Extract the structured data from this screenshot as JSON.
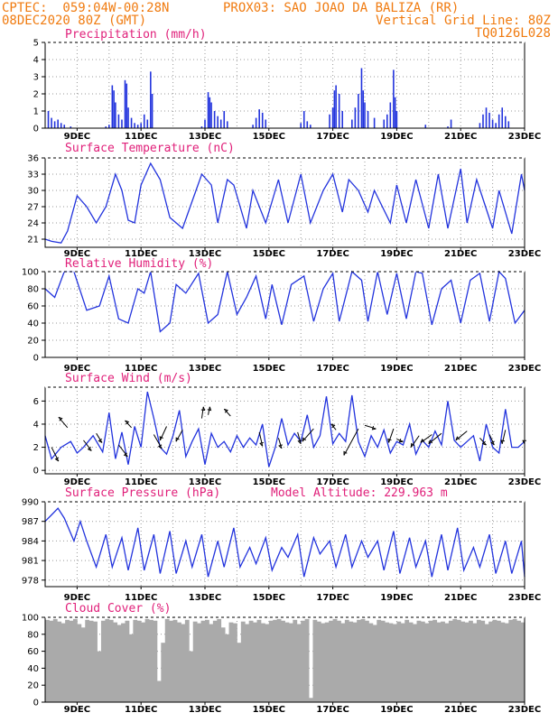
{
  "header": {
    "line1_left": "CPTEC:  059:04W-00:28N",
    "line1_right": "PROX03: SAO JOAO DA BALIZA (RR)",
    "line2_left": "08DEC2020 80Z (GMT)",
    "line2_right": "Vertical Grid Line: 80Z",
    "line3_right": "TQ0126L028"
  },
  "x_ticks": [
    "9DEC",
    "11DEC",
    "13DEC",
    "15DEC",
    "17DEC",
    "19DEC",
    "21DEC",
    "23DEC"
  ],
  "colors": {
    "header": "#f07b10",
    "title": "#e0207a",
    "series": "#2233dd",
    "cloud": "#aaaaaa"
  },
  "chart_data": [
    {
      "type": "bar",
      "title": "Precipitation (mm/h)",
      "ylim": [
        0,
        5
      ],
      "yticks": [
        "0",
        "1",
        "2",
        "3",
        "4",
        "5"
      ],
      "xlim": [
        8,
        23
      ],
      "bars": [
        [
          8.1,
          1.0
        ],
        [
          8.2,
          0.6
        ],
        [
          8.3,
          0.4
        ],
        [
          8.4,
          0.5
        ],
        [
          8.5,
          0.3
        ],
        [
          8.6,
          0.2
        ],
        [
          8.8,
          0.1
        ],
        [
          9.9,
          0.1
        ],
        [
          10.0,
          0.2
        ],
        [
          10.1,
          2.5
        ],
        [
          10.15,
          2.2
        ],
        [
          10.2,
          1.5
        ],
        [
          10.3,
          0.8
        ],
        [
          10.4,
          0.5
        ],
        [
          10.5,
          2.8
        ],
        [
          10.55,
          2.6
        ],
        [
          10.6,
          1.2
        ],
        [
          10.7,
          0.6
        ],
        [
          10.8,
          0.3
        ],
        [
          10.9,
          0.2
        ],
        [
          11.0,
          0.3
        ],
        [
          11.1,
          0.8
        ],
        [
          11.2,
          0.5
        ],
        [
          11.3,
          3.3
        ],
        [
          11.35,
          2.0
        ],
        [
          12.9,
          0.1
        ],
        [
          13.0,
          0.5
        ],
        [
          13.1,
          2.1
        ],
        [
          13.15,
          1.8
        ],
        [
          13.2,
          1.5
        ],
        [
          13.3,
          1.0
        ],
        [
          13.4,
          0.7
        ],
        [
          13.5,
          0.5
        ],
        [
          13.6,
          1.0
        ],
        [
          13.7,
          0.4
        ],
        [
          14.5,
          0.2
        ],
        [
          14.6,
          0.6
        ],
        [
          14.7,
          1.1
        ],
        [
          14.8,
          0.9
        ],
        [
          14.9,
          0.5
        ],
        [
          16.0,
          0.3
        ],
        [
          16.1,
          1.0
        ],
        [
          16.2,
          0.4
        ],
        [
          16.3,
          0.2
        ],
        [
          16.9,
          0.8
        ],
        [
          17.0,
          1.2
        ],
        [
          17.05,
          2.2
        ],
        [
          17.1,
          2.5
        ],
        [
          17.2,
          2.0
        ],
        [
          17.3,
          1.0
        ],
        [
          17.6,
          0.5
        ],
        [
          17.7,
          1.2
        ],
        [
          17.8,
          2.0
        ],
        [
          17.9,
          3.5
        ],
        [
          17.95,
          2.2
        ],
        [
          18.0,
          1.5
        ],
        [
          18.1,
          1.0
        ],
        [
          18.3,
          0.6
        ],
        [
          18.6,
          0.5
        ],
        [
          18.7,
          0.8
        ],
        [
          18.8,
          1.5
        ],
        [
          18.9,
          3.4
        ],
        [
          18.95,
          1.8
        ],
        [
          19.0,
          1.0
        ],
        [
          19.9,
          0.2
        ],
        [
          20.6,
          0.1
        ],
        [
          20.7,
          0.5
        ],
        [
          21.6,
          0.3
        ],
        [
          21.7,
          0.8
        ],
        [
          21.8,
          1.2
        ],
        [
          21.9,
          0.9
        ],
        [
          22.0,
          0.5
        ],
        [
          22.1,
          0.3
        ],
        [
          22.2,
          0.8
        ],
        [
          22.3,
          1.2
        ],
        [
          22.4,
          0.7
        ],
        [
          22.5,
          0.4
        ]
      ]
    },
    {
      "type": "line",
      "title": "Surface Temperature (nC)",
      "ylim": [
        19.5,
        36
      ],
      "ytick_values": [
        21,
        24,
        27,
        30,
        33,
        36
      ],
      "yticks": [
        "21",
        "24",
        "27",
        "30",
        "33",
        "36"
      ],
      "x": [
        8.0,
        8.2,
        8.5,
        8.7,
        9.0,
        9.3,
        9.6,
        9.9,
        10.2,
        10.4,
        10.6,
        10.8,
        11.0,
        11.3,
        11.6,
        11.9,
        12.3,
        12.6,
        12.9,
        13.2,
        13.4,
        13.7,
        13.9,
        14.3,
        14.5,
        14.9,
        15.3,
        15.6,
        16.0,
        16.3,
        16.7,
        17.0,
        17.3,
        17.5,
        17.8,
        18.1,
        18.3,
        18.8,
        19.0,
        19.3,
        19.6,
        20.0,
        20.3,
        20.6,
        21.0,
        21.2,
        21.5,
        22.0,
        22.2,
        22.6,
        22.9,
        23.0
      ],
      "y": [
        21,
        20.6,
        20.3,
        22.5,
        29,
        27,
        24,
        27,
        33,
        30,
        24.5,
        24,
        31,
        35,
        32,
        25,
        23,
        28,
        33,
        31,
        24,
        32,
        31,
        23,
        30,
        24,
        32,
        24,
        33,
        24,
        30,
        33,
        26,
        32,
        30,
        26,
        30,
        24,
        31,
        24,
        32,
        23,
        33,
        23,
        34,
        24,
        32,
        23,
        30,
        22,
        33,
        30
      ]
    },
    {
      "type": "line",
      "title": "Relative Humidity (%)",
      "ylim": [
        0,
        100
      ],
      "yticks": [
        "0",
        "20",
        "40",
        "60",
        "80",
        "100"
      ],
      "x": [
        8.0,
        8.3,
        8.6,
        8.9,
        9.3,
        9.7,
        10.0,
        10.3,
        10.6,
        10.9,
        11.1,
        11.3,
        11.6,
        11.9,
        12.1,
        12.4,
        12.8,
        13.1,
        13.4,
        13.7,
        14.0,
        14.3,
        14.6,
        14.9,
        15.1,
        15.4,
        15.7,
        16.1,
        16.4,
        16.7,
        17.0,
        17.2,
        17.6,
        17.9,
        18.1,
        18.4,
        18.7,
        19.0,
        19.3,
        19.6,
        19.8,
        20.1,
        20.4,
        20.7,
        21.0,
        21.3,
        21.6,
        21.9,
        22.2,
        22.4,
        22.7,
        23.0
      ],
      "y": [
        80,
        70,
        100,
        100,
        55,
        60,
        95,
        45,
        40,
        80,
        75,
        100,
        30,
        40,
        85,
        75,
        98,
        40,
        50,
        100,
        50,
        70,
        95,
        45,
        85,
        38,
        85,
        95,
        42,
        80,
        98,
        42,
        100,
        90,
        42,
        100,
        50,
        98,
        45,
        100,
        98,
        38,
        80,
        90,
        40,
        90,
        98,
        42,
        100,
        92,
        40,
        55
      ]
    },
    {
      "type": "line",
      "title": "Surface Wind (m/s)",
      "ylim": [
        -0.3,
        7.2
      ],
      "ytick_values": [
        0,
        2,
        4,
        6
      ],
      "yticks": [
        "0",
        "2",
        "4",
        "6"
      ],
      "x": [
        8.0,
        8.2,
        8.5,
        8.8,
        9.0,
        9.2,
        9.5,
        9.8,
        10.0,
        10.2,
        10.4,
        10.6,
        10.8,
        11.0,
        11.2,
        11.4,
        11.6,
        11.8,
        12.0,
        12.2,
        12.4,
        12.6,
        12.8,
        13.0,
        13.2,
        13.4,
        13.6,
        13.8,
        14.0,
        14.2,
        14.4,
        14.6,
        14.8,
        15.0,
        15.2,
        15.4,
        15.6,
        15.8,
        16.0,
        16.2,
        16.4,
        16.6,
        16.8,
        17.0,
        17.2,
        17.4,
        17.6,
        17.8,
        18.0,
        18.2,
        18.4,
        18.6,
        18.8,
        19.0,
        19.2,
        19.4,
        19.6,
        19.8,
        20.0,
        20.2,
        20.4,
        20.6,
        20.8,
        21.0,
        21.2,
        21.4,
        21.6,
        21.8,
        22.0,
        22.2,
        22.4,
        22.6,
        22.8,
        23.0
      ],
      "y": [
        3.0,
        1.0,
        2.0,
        2.5,
        1.5,
        2.0,
        3.0,
        1.6,
        5.0,
        1.0,
        3.3,
        0.5,
        3.8,
        2.0,
        6.8,
        4.5,
        2.0,
        1.4,
        3.0,
        5.2,
        1.2,
        2.5,
        3.6,
        0.5,
        3.2,
        2.0,
        2.5,
        1.6,
        3.0,
        2.0,
        2.8,
        2.2,
        4.0,
        0.3,
        2.0,
        4.5,
        2.2,
        3.2,
        2.5,
        4.8,
        2.0,
        3.0,
        6.4,
        2.3,
        3.2,
        2.5,
        6.5,
        2.5,
        1.2,
        3.0,
        2.0,
        3.5,
        1.5,
        2.5,
        2.2,
        4.0,
        1.4,
        2.6,
        2.0,
        3.4,
        2.2,
        6.0,
        2.6,
        2.0,
        2.5,
        3.0,
        0.8,
        4.0,
        2.0,
        1.5,
        5.3,
        2.0,
        2.0,
        2.5
      ],
      "arrows": [
        {
          "x": 8.2,
          "y": 2.0,
          "dx": 0.22,
          "dy": -1.2
        },
        {
          "x": 8.7,
          "y": 3.7,
          "dx": -0.28,
          "dy": 0.9
        },
        {
          "x": 9.2,
          "y": 2.6,
          "dx": 0.25,
          "dy": -0.9
        },
        {
          "x": 9.6,
          "y": 3.2,
          "dx": 0.18,
          "dy": -0.8
        },
        {
          "x": 10.3,
          "y": 2.2,
          "dx": 0.28,
          "dy": -1.0
        },
        {
          "x": 10.7,
          "y": 3.7,
          "dx": -0.2,
          "dy": 0.6
        },
        {
          "x": 11.4,
          "y": 3.1,
          "dx": 0.25,
          "dy": -1.2
        },
        {
          "x": 11.8,
          "y": 3.8,
          "dx": -0.2,
          "dy": -1.2
        },
        {
          "x": 12.3,
          "y": 3.5,
          "dx": -0.2,
          "dy": -1.0
        },
        {
          "x": 12.9,
          "y": 4.5,
          "dx": 0.05,
          "dy": 1.0
        },
        {
          "x": 13.1,
          "y": 4.8,
          "dx": 0.05,
          "dy": 0.7
        },
        {
          "x": 13.8,
          "y": 4.7,
          "dx": -0.2,
          "dy": 0.6
        },
        {
          "x": 14.7,
          "y": 3.3,
          "dx": 0.1,
          "dy": -1.2
        },
        {
          "x": 15.3,
          "y": 2.8,
          "dx": 0.1,
          "dy": -0.9
        },
        {
          "x": 15.9,
          "y": 3.3,
          "dx": 0.1,
          "dy": -1.0
        },
        {
          "x": 16.4,
          "y": 3.6,
          "dx": -0.35,
          "dy": -1.1
        },
        {
          "x": 17.1,
          "y": 3.5,
          "dx": -0.15,
          "dy": 0.5
        },
        {
          "x": 17.8,
          "y": 3.6,
          "dx": -0.45,
          "dy": -2.3
        },
        {
          "x": 18.0,
          "y": 3.9,
          "dx": 0.35,
          "dy": -0.3
        },
        {
          "x": 18.9,
          "y": 3.6,
          "dx": -0.15,
          "dy": -1.2
        },
        {
          "x": 19.0,
          "y": 2.7,
          "dx": 0.2,
          "dy": -0.2
        },
        {
          "x": 19.7,
          "y": 3.0,
          "dx": -0.25,
          "dy": -1.0
        },
        {
          "x": 20.1,
          "y": 3.1,
          "dx": -0.35,
          "dy": -0.7
        },
        {
          "x": 20.4,
          "y": 3.2,
          "dx": -0.4,
          "dy": -0.9
        },
        {
          "x": 21.2,
          "y": 3.4,
          "dx": -0.35,
          "dy": -0.8
        },
        {
          "x": 21.6,
          "y": 2.8,
          "dx": 0.2,
          "dy": -0.6
        },
        {
          "x": 21.9,
          "y": 3.1,
          "dx": 0.15,
          "dy": -0.9
        },
        {
          "x": 22.4,
          "y": 3.5,
          "dx": -0.1,
          "dy": -1.2
        },
        {
          "x": 23.0,
          "y": 3.3,
          "dx": 0.0,
          "dy": -1.0
        }
      ]
    },
    {
      "type": "line",
      "title": "Surface Pressure (hPa)",
      "annotation": "Model Altitude: 229.963 m",
      "ylim": [
        977,
        990
      ],
      "ytick_values": [
        978,
        981,
        984,
        987,
        990
      ],
      "yticks": [
        "978",
        "981",
        "984",
        "987",
        "990"
      ],
      "x": [
        8.0,
        8.2,
        8.4,
        8.6,
        8.9,
        9.1,
        9.3,
        9.6,
        9.9,
        10.1,
        10.4,
        10.6,
        10.9,
        11.1,
        11.4,
        11.6,
        11.9,
        12.1,
        12.4,
        12.6,
        12.9,
        13.1,
        13.4,
        13.6,
        13.9,
        14.1,
        14.4,
        14.6,
        14.9,
        15.1,
        15.4,
        15.6,
        15.9,
        16.1,
        16.4,
        16.6,
        16.9,
        17.1,
        17.4,
        17.6,
        17.9,
        18.1,
        18.4,
        18.6,
        18.9,
        19.1,
        19.4,
        19.6,
        19.9,
        20.1,
        20.4,
        20.6,
        20.9,
        21.1,
        21.4,
        21.6,
        21.9,
        22.1,
        22.4,
        22.6,
        22.9,
        23.0
      ],
      "y": [
        987,
        988,
        989,
        987.5,
        984,
        987,
        984,
        980,
        985,
        980,
        984.5,
        979.5,
        986,
        979.5,
        985,
        979,
        985.5,
        979,
        984,
        980,
        985,
        978.5,
        984,
        980,
        986,
        980,
        983,
        980.5,
        984.5,
        979.5,
        983,
        981.5,
        985,
        978.5,
        984.5,
        982,
        984,
        980,
        985,
        980,
        984,
        981.5,
        984,
        979.5,
        985.5,
        979,
        984.5,
        980,
        984,
        978.5,
        985,
        979.5,
        986,
        979.5,
        983,
        980,
        985,
        979,
        984,
        979,
        984,
        978.5
      ]
    },
    {
      "type": "bar",
      "title": "Cloud Cover (%)",
      "ylim": [
        0,
        100
      ],
      "yticks": [
        "0",
        "20",
        "40",
        "60",
        "80",
        "100"
      ],
      "xlim": [
        8,
        23
      ],
      "x_start": 8.0,
      "step": 0.125,
      "values": [
        97,
        96,
        98,
        95,
        93,
        97,
        96,
        98,
        92,
        88,
        97,
        96,
        95,
        60,
        96,
        98,
        97,
        94,
        91,
        93,
        96,
        80,
        97,
        96,
        94,
        98,
        97,
        96,
        25,
        70,
        98,
        96,
        97,
        94,
        92,
        97,
        60,
        95,
        93,
        96,
        97,
        92,
        96,
        98,
        88,
        80,
        94,
        93,
        70,
        95,
        92,
        96,
        94,
        97,
        93,
        92,
        96,
        97,
        98,
        96,
        94,
        93,
        97,
        92,
        96,
        98,
        5,
        97,
        95,
        93,
        94,
        96,
        98,
        96,
        93,
        97,
        95,
        94,
        97,
        98,
        96,
        93,
        91,
        97,
        96,
        94,
        93,
        92,
        95,
        93,
        97,
        94,
        92,
        96,
        95,
        93,
        96,
        97,
        94,
        95,
        93,
        96,
        98,
        97,
        95,
        94,
        96,
        93,
        97,
        96,
        92,
        95,
        97,
        96,
        94,
        93,
        97,
        98,
        96,
        94
      ]
    }
  ]
}
